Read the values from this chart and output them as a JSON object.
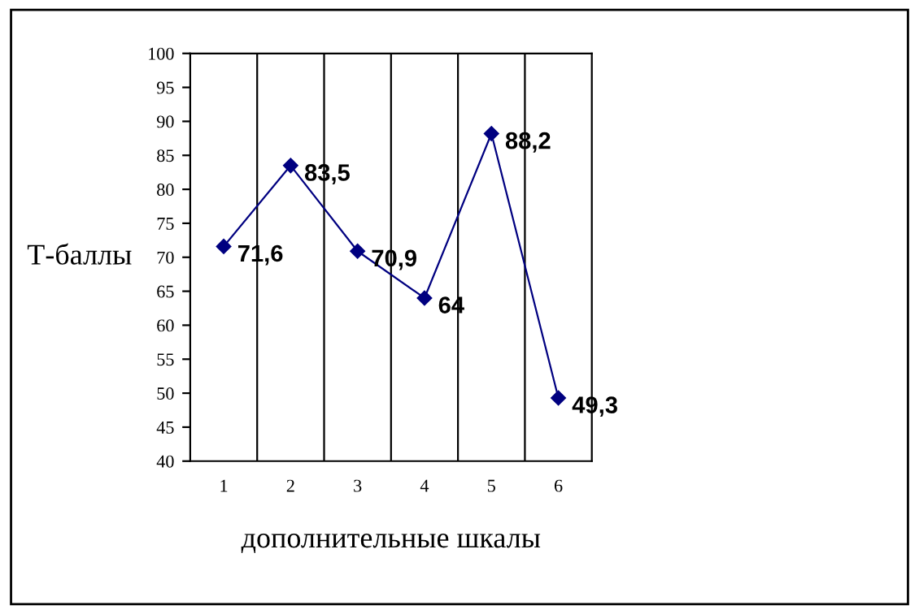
{
  "chart_data": {
    "type": "line",
    "xlabel": "дополнительные шкалы",
    "ylabel": "Т-баллы",
    "categories": [
      "1",
      "2",
      "3",
      "4",
      "5",
      "6"
    ],
    "series": [
      {
        "color": "#000080",
        "values": [
          71.6,
          83.5,
          70.9,
          64,
          88.2,
          49.3
        ],
        "value_labels": [
          "71,6",
          "83,5",
          "70,9",
          "64",
          "88,2",
          "49,3"
        ]
      }
    ],
    "ylim": [
      40,
      100
    ],
    "yticks": [
      40,
      45,
      50,
      55,
      60,
      65,
      70,
      75,
      80,
      85,
      90,
      95,
      100
    ],
    "grid": "x",
    "marker": "diamond",
    "line_style": "solid",
    "legend": false
  }
}
